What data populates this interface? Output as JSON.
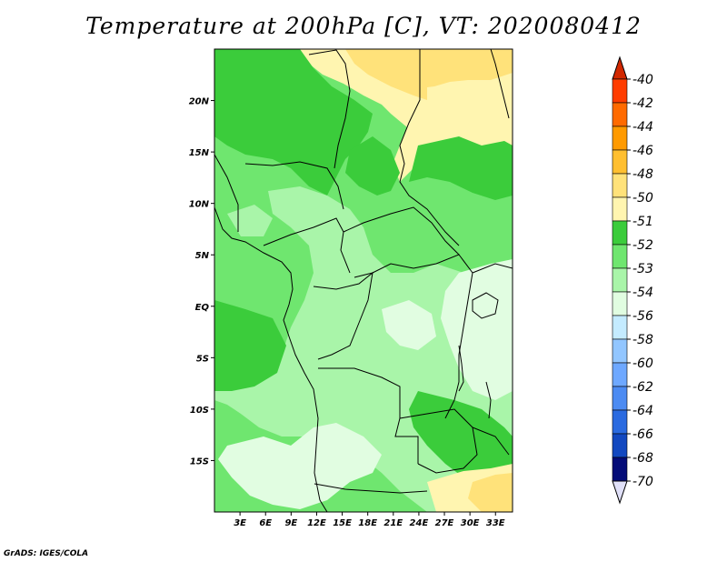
{
  "title": "Temperature at 200hPa [C], VT: 2020080412",
  "credit": "GrADS: IGES/COLA",
  "map": {
    "lon_range": [
      0,
      35
    ],
    "lat_range": [
      -20,
      25
    ],
    "lon_ticks": [
      "3E",
      "6E",
      "9E",
      "12E",
      "15E",
      "18E",
      "21E",
      "24E",
      "27E",
      "30E",
      "33E"
    ],
    "lon_tick_values": [
      3,
      6,
      9,
      12,
      15,
      18,
      21,
      24,
      27,
      30,
      33
    ],
    "lat_ticks": [
      "20N",
      "15N",
      "10N",
      "5N",
      "EQ",
      "5S",
      "10S",
      "15S"
    ],
    "lat_tick_values": [
      20,
      15,
      10,
      5,
      0,
      -5,
      -10,
      -15
    ]
  },
  "colorbar": {
    "labels": [
      "-40",
      "-42",
      "-44",
      "-46",
      "-48",
      "-50",
      "-51",
      "-52",
      "-53",
      "-54",
      "-56",
      "-58",
      "-60",
      "-62",
      "-64",
      "-66",
      "-68",
      "-70"
    ],
    "top_cap_color": "#d22800",
    "bottom_cap_color": "#e0e0f8",
    "colors": [
      "#ff3c00",
      "#ff6a00",
      "#ff9a00",
      "#ffbf30",
      "#ffe27a",
      "#fff5b0",
      "#3bcc3b",
      "#6fe66f",
      "#a9f5a9",
      "#e1fde1",
      "#c4ebff",
      "#92c6ff",
      "#6ea8ff",
      "#4c8bf2",
      "#2a6ae0",
      "#1248c0",
      "#040c78"
    ]
  },
  "field_colors": {
    "c50": "#fff5b0",
    "c48": "#ffe27a",
    "c51": "#3bcc3b",
    "c52": "#6fe66f",
    "c53": "#a9f5a9",
    "c54": "#e1fde1"
  }
}
